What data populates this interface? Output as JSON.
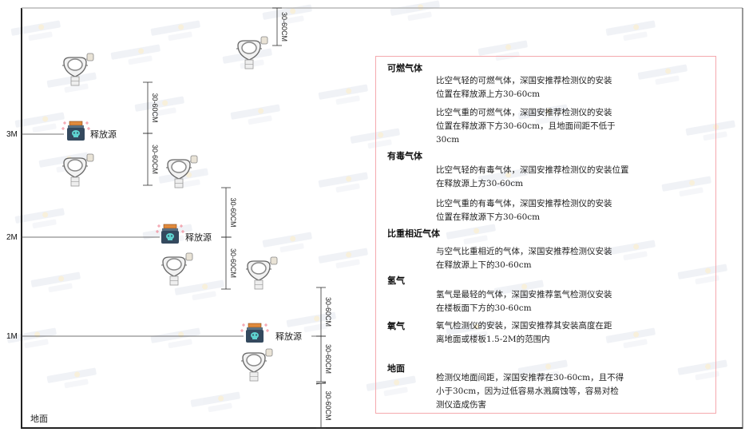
{
  "watermark": {
    "brand": "SINGOAN",
    "cn": "深国安"
  },
  "levels": [
    {
      "label": "3M",
      "source_label": "释放源"
    },
    {
      "label": "2M",
      "source_label": "释放源"
    },
    {
      "label": "1M",
      "source_label": "释放源"
    }
  ],
  "floor_label": "地面",
  "dimension_label": "30-60CM",
  "colors": {
    "frame": "#333333",
    "box_border": "#f4a9ae",
    "source_cap": "#e08a3c",
    "source_body": "#34495e",
    "skull": "#5fd3d0"
  },
  "info": {
    "sections": [
      {
        "title": "可燃气体",
        "paragraphs": [
          "比空气轻的可燃气体，深国安推荐检测仪的安装\n位置在释放源上方30-60cm",
          "比空气重的可燃气体，深国安推荐检测仪的安装\n位置在释放源下方30-60cm，且地面间距不低于\n30cm"
        ]
      },
      {
        "title": "有毒气体",
        "paragraphs": [
          "比空气轻的有毒气体，深国安推荐检测仪的安装位置\n在释放源上方30-60cm",
          "比空气重的有毒气体，深国安推荐检测仪的安装\n位置在释放源下方30-60cm"
        ]
      },
      {
        "title": "比重相近气体",
        "paragraphs": [
          "与空气比重相近的气体，深国安推荐检测仪安装\n在释放源上下的30-60cm"
        ]
      },
      {
        "title": "氢气",
        "paragraphs": [
          "氢气是最轻的气体，深国安推荐氢气检测仪安装\n在楼板面下方的30-60cm"
        ]
      },
      {
        "title": "氧气",
        "paragraphs": [
          "氧气检测仪的安装，深国安推荐其安装高度在距\n离地面或楼板1.5-2M的范围内"
        ]
      },
      {
        "title": "地面",
        "paragraphs": [
          "检测仪地面间距，深国安推荐在30-60cm，且不得\n小于30cm，因为过低容易水溅腐蚀等，容易对检\n测仪造成伤害"
        ]
      }
    ]
  }
}
